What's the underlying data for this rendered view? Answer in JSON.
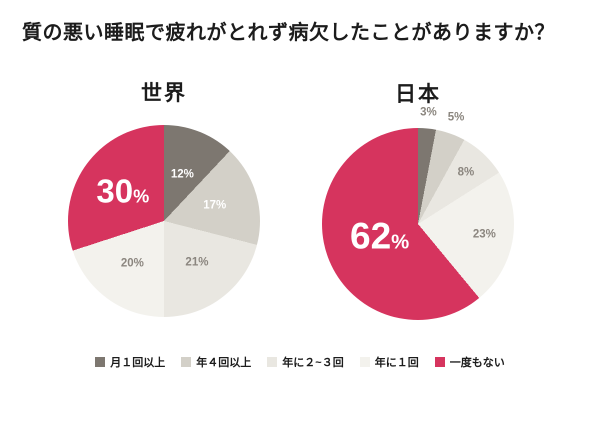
{
  "title": "質の悪い睡眠で疲れがとれず病欠したことがありますか？",
  "colors": {
    "background": "#ffffff",
    "title_text": "#1c1c1c",
    "muted_label_text": "#8b867f",
    "accent_pink": "#d6345e",
    "dark_gray": "#7d7770",
    "medium_gray": "#d3d0c8",
    "light_gray": "#e9e7e1",
    "lightest_gray": "#f3f2ed"
  },
  "legend": {
    "position": "bottom-center",
    "items": [
      {
        "label": "月１回以上",
        "color": "#7d7770"
      },
      {
        "label": "年４回以上",
        "color": "#d3d0c8"
      },
      {
        "label": "年に２~３回",
        "color": "#e9e7e1"
      },
      {
        "label": "年に１回",
        "color": "#f3f2ed"
      },
      {
        "label": "一度もない",
        "color": "#d6345e"
      }
    ]
  },
  "chart_data": [
    {
      "type": "pie",
      "title": "世界",
      "start_angle_deg": 0,
      "direction": "clockwise",
      "slices": [
        {
          "category": "月１回以上",
          "value": 12,
          "color": "#7d7770",
          "label_color": "#ffffff",
          "label_r": 0.52
        },
        {
          "category": "年４回以上",
          "value": 17,
          "color": "#d3d0c8",
          "label_color": "#ffffff",
          "label_r": 0.55
        },
        {
          "category": "年に２~３回",
          "value": 21,
          "color": "#e9e7e1",
          "label_color": "#8b867f",
          "label_r": 0.56
        },
        {
          "category": "年に１回",
          "value": 20,
          "color": "#f3f2ed",
          "label_color": "#8b867f",
          "label_r": 0.56
        },
        {
          "category": "一度もない",
          "value": 30,
          "color": "#d6345e",
          "label_color": "#ffffff",
          "label_r": 0.53,
          "big": true,
          "big_font_px": 33
        }
      ]
    },
    {
      "type": "pie",
      "title": "日本",
      "start_angle_deg": 0,
      "direction": "clockwise",
      "slices": [
        {
          "category": "月１回以上",
          "value": 3,
          "color": "#7d7770",
          "label_color": "#8b867f",
          "label_r": 1.16
        },
        {
          "category": "年４回以上",
          "value": 5,
          "color": "#d3d0c8",
          "label_color": "#8b867f",
          "label_r": 1.17
        },
        {
          "category": "年に２~３回",
          "value": 8,
          "color": "#e9e7e1",
          "label_color": "#8b867f",
          "label_r": 0.73
        },
        {
          "category": "年に１回",
          "value": 23,
          "color": "#f3f2ed",
          "label_color": "#8b867f",
          "label_r": 0.7
        },
        {
          "category": "一度もない",
          "value": 62,
          "color": "#d6345e",
          "label_color": "#ffffff",
          "label_r": 0.42,
          "big": true,
          "big_font_px": 37
        }
      ]
    }
  ]
}
